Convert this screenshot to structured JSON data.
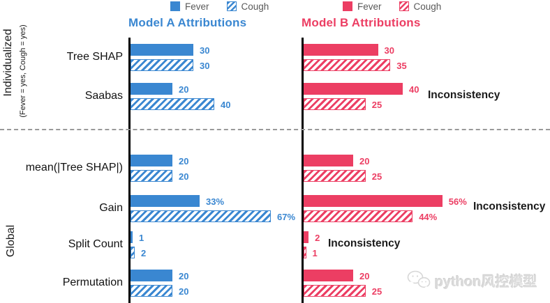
{
  "titles": {
    "model_a": "Model A Attributions",
    "model_b": "Model B Attributions"
  },
  "legends": {
    "model_a": {
      "fever": "Fever",
      "cough": "Cough"
    },
    "model_b": {
      "fever": "Fever",
      "cough": "Cough"
    }
  },
  "side_labels": {
    "individualized": "Individualized",
    "individualized_sub": "(Fever = yes, Cough = yes)",
    "global": "Global"
  },
  "annotations": {
    "inconsistency": "Inconsistency"
  },
  "watermark": {
    "text": "python风控模型",
    "icon": "wechat-bubbles-icon"
  },
  "colors": {
    "model_a": "#3a87d1",
    "model_b": "#ec3e63",
    "divider": "#999999",
    "annotation": "#1a1a1a",
    "watermark": "#dbdbdb"
  },
  "chart_data": {
    "type": "bar",
    "orientation": "horizontal",
    "series_names": [
      "Fever",
      "Cough"
    ],
    "cough_bar_style": "hatched",
    "value_labels_shown": true,
    "axes": "single vertical baseline per panel, no ticks or gridlines",
    "panels": [
      "Model A Attributions",
      "Model B Attributions"
    ],
    "groups": [
      {
        "name": "Individualized",
        "condition": "(Fever = yes, Cough = yes)",
        "rows": [
          "Tree SHAP",
          "Saabas"
        ]
      },
      {
        "name": "Global",
        "rows": [
          "mean(|Tree SHAP|)",
          "Gain",
          "Split Count",
          "Permutation"
        ]
      }
    ],
    "rows": [
      {
        "label": "Tree SHAP",
        "model_a": {
          "fever": "30",
          "cough": "30"
        },
        "model_b": {
          "fever": "30",
          "cough": "35"
        },
        "inconsistency": false
      },
      {
        "label": "Saabas",
        "model_a": {
          "fever": "20",
          "cough": "40"
        },
        "model_b": {
          "fever": "40",
          "cough": "25"
        },
        "inconsistency": true
      },
      {
        "label": "mean(|Tree SHAP|)",
        "model_a": {
          "fever": "20",
          "cough": "20"
        },
        "model_b": {
          "fever": "20",
          "cough": "25"
        },
        "inconsistency": false
      },
      {
        "label": "Gain",
        "model_a": {
          "fever": "33%",
          "cough": "67%"
        },
        "model_b": {
          "fever": "56%",
          "cough": "44%"
        },
        "inconsistency": true
      },
      {
        "label": "Split Count",
        "model_a": {
          "fever": "1",
          "cough": "2"
        },
        "model_b": {
          "fever": "2",
          "cough": "1"
        },
        "inconsistency": true
      },
      {
        "label": "Permutation",
        "model_a": {
          "fever": "20",
          "cough": "20"
        },
        "model_b": {
          "fever": "20",
          "cough": "25"
        },
        "inconsistency": false
      }
    ]
  }
}
